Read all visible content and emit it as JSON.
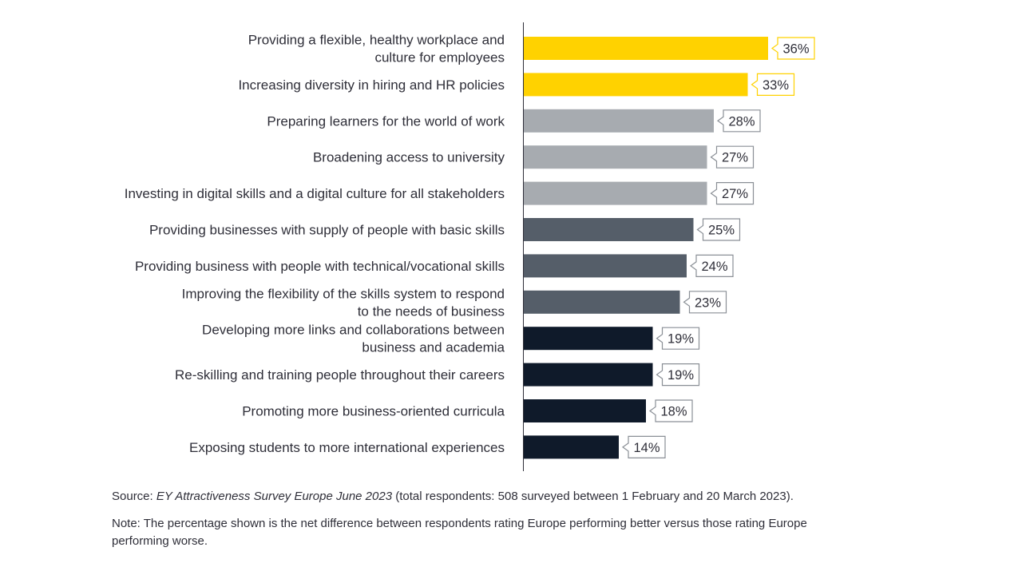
{
  "chart_data": {
    "type": "bar",
    "orientation": "horizontal",
    "categories": [
      [
        "Providing a flexible, healthy workplace and",
        "culture for employees"
      ],
      [
        "Increasing diversity in hiring and HR policies"
      ],
      [
        "Preparing learners for the world of work"
      ],
      [
        "Broadening access to university"
      ],
      [
        "Investing in digital skills and a digital culture for all stakeholders"
      ],
      [
        "Providing businesses with supply of people with basic skills"
      ],
      [
        "Providing business with people with technical/vocational skills"
      ],
      [
        "Improving the flexibility of the skills system to respond",
        "to the needs of business"
      ],
      [
        "Developing more links and collaborations between",
        "business and academia"
      ],
      [
        "Re-skilling and training people throughout their careers"
      ],
      [
        "Promoting more business-oriented curricula"
      ],
      [
        "Exposing students to more international experiences"
      ]
    ],
    "values": [
      36,
      33,
      28,
      27,
      27,
      25,
      24,
      23,
      19,
      19,
      18,
      14
    ],
    "value_labels": [
      "36%",
      "33%",
      "28%",
      "27%",
      "27%",
      "25%",
      "24%",
      "23%",
      "19%",
      "19%",
      "18%",
      "14%"
    ],
    "tier_colors": [
      "#ffd200",
      "#ffd200",
      "#a7abb0",
      "#a7abb0",
      "#a7abb0",
      "#555e69",
      "#555e69",
      "#555e69",
      "#0f1a2a",
      "#0f1a2a",
      "#0f1a2a",
      "#0f1a2a"
    ],
    "xlim": [
      0,
      100
    ],
    "unit": "%",
    "legend": "none",
    "grid": false
  },
  "footer": {
    "source_prefix": "Source: ",
    "source_title": "EY Attractiveness Survey Europe June 2023",
    "source_rest": " (total respondents: 508 surveyed between 1 February and 20 March 2023).",
    "note": "Note: The percentage shown is the net difference between respondents rating Europe performing better versus those rating Europe performing worse."
  }
}
